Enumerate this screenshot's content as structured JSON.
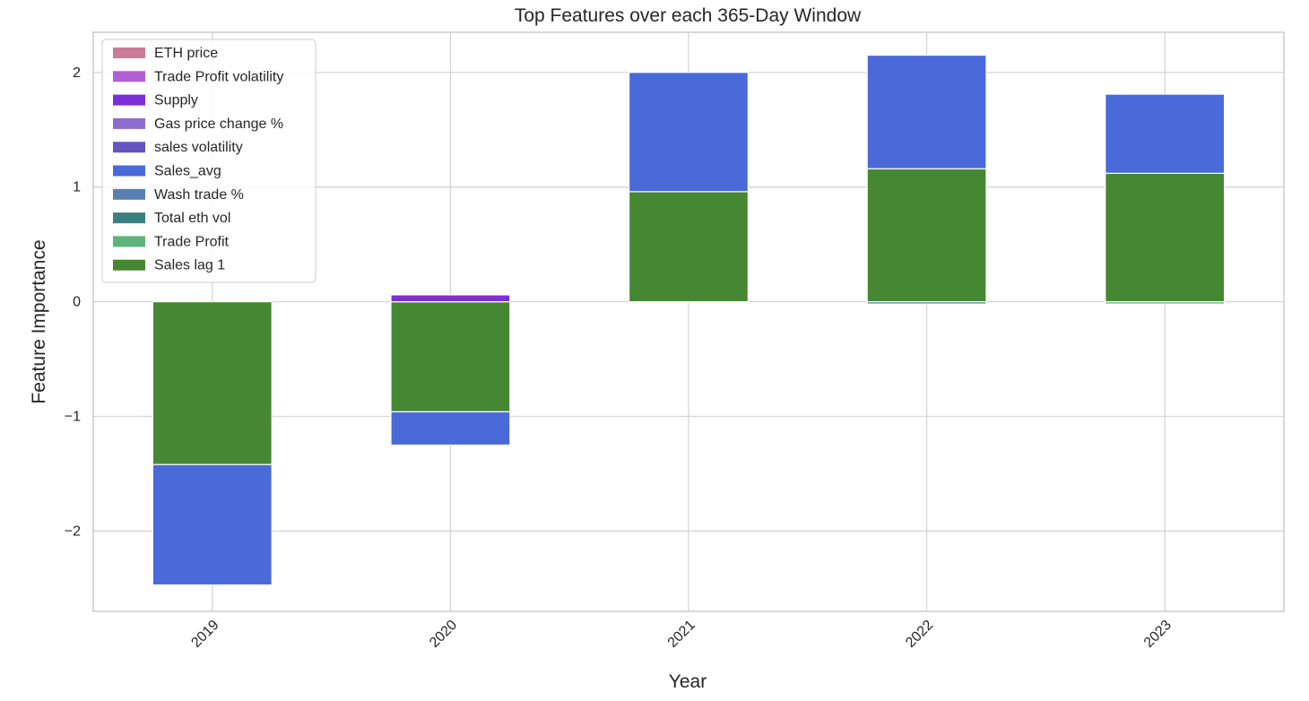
{
  "chart_data": {
    "type": "bar",
    "stacked": true,
    "title": "Top Features over each 365-Day Window",
    "xlabel": "Year",
    "ylabel": "Feature Importance",
    "categories": [
      "2019",
      "2020",
      "2021",
      "2022",
      "2023"
    ],
    "ylim": [
      -2.7,
      2.35
    ],
    "yticks": [
      -2,
      -1,
      0,
      1,
      2
    ],
    "ytick_labels": [
      "−2",
      "−1",
      "0",
      "1",
      "2"
    ],
    "grid": true,
    "legend_position": "upper-left",
    "series": [
      {
        "name": "ETH price",
        "color": "#cc7a9a",
        "values": [
          0,
          0,
          0,
          0,
          0
        ]
      },
      {
        "name": "Trade Profit volatility",
        "color": "#b15fd4",
        "values": [
          0,
          0,
          0,
          0,
          0
        ]
      },
      {
        "name": "Supply",
        "color": "#7b2fd6",
        "values": [
          0,
          0.06,
          0,
          0,
          0
        ]
      },
      {
        "name": "Gas price change %",
        "color": "#8c6ccd",
        "values": [
          0,
          0,
          0,
          0,
          0
        ]
      },
      {
        "name": "sales volatility",
        "color": "#6655c0",
        "values": [
          0,
          0,
          0,
          0,
          0
        ]
      },
      {
        "name": "Sales_avg",
        "color": "#4a6ad9",
        "values": [
          -1.05,
          -0.29,
          1.04,
          0.99,
          0.69
        ]
      },
      {
        "name": "Wash trade %",
        "color": "#5880b0",
        "values": [
          0,
          0,
          0,
          -0.02,
          0
        ]
      },
      {
        "name": "Total eth vol",
        "color": "#3b8080",
        "values": [
          0,
          0,
          0,
          0,
          0
        ]
      },
      {
        "name": "Trade Profit",
        "color": "#5fb47a",
        "values": [
          0,
          0,
          0,
          0,
          -0.02
        ]
      },
      {
        "name": "Sales lag 1",
        "color": "#468734",
        "values": [
          -1.42,
          -0.96,
          0.96,
          1.16,
          1.12
        ]
      }
    ]
  }
}
